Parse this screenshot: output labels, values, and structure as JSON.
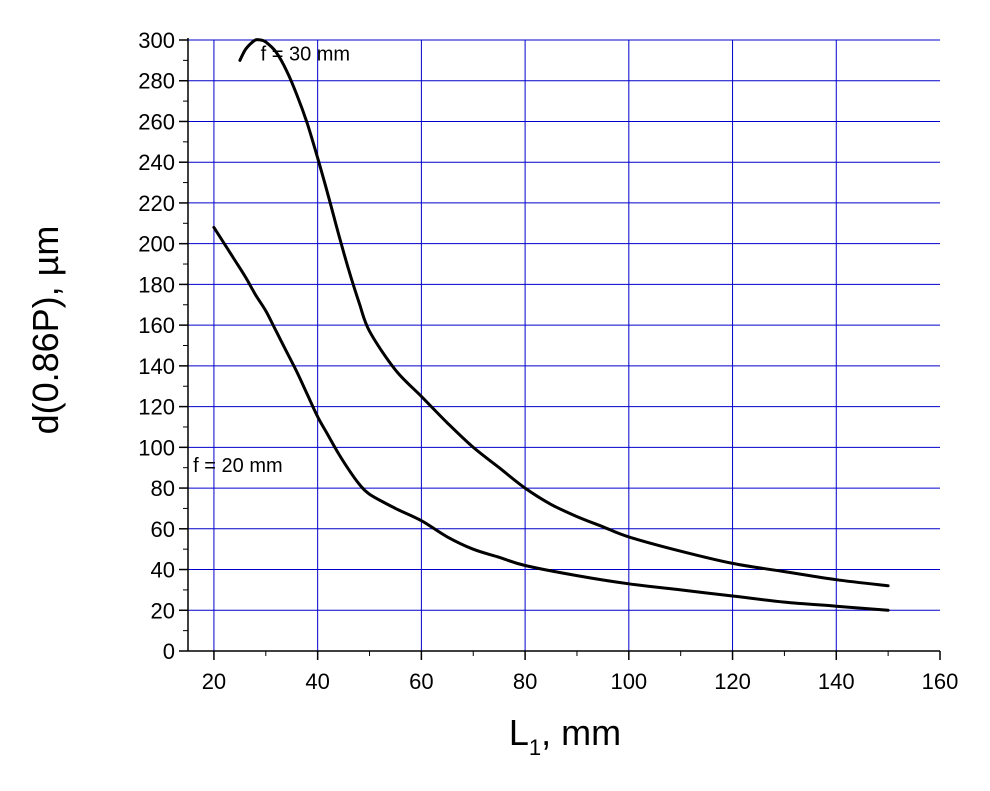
{
  "chart_data": {
    "type": "line",
    "xlabel": "L",
    "xlabel_subscript": "1",
    "xlabel_suffix": ", mm",
    "ylabel": "d(0.86P), µm",
    "xlim": [
      15,
      160
    ],
    "ylim": [
      0,
      300
    ],
    "x_ticks": [
      20,
      40,
      60,
      80,
      100,
      120,
      140,
      160
    ],
    "y_ticks": [
      0,
      20,
      40,
      60,
      80,
      100,
      120,
      140,
      160,
      180,
      200,
      220,
      240,
      260,
      280,
      300
    ],
    "grid": true,
    "grid_color": "#0000cc",
    "line_color": "#000000",
    "series": [
      {
        "name": "f = 30 mm",
        "x": [
          25,
          26,
          27,
          28,
          29,
          30,
          32,
          34,
          36,
          38,
          40,
          42,
          44,
          46,
          48,
          50,
          55,
          60,
          65,
          70,
          75,
          80,
          85,
          90,
          95,
          100,
          110,
          120,
          130,
          140,
          150
        ],
        "y": [
          290,
          295,
          298,
          300,
          300,
          299,
          294,
          285,
          273,
          259,
          242,
          224,
          205,
          187,
          171,
          157,
          138,
          125,
          112,
          100,
          90,
          80,
          72,
          66,
          61,
          56,
          49,
          43,
          39,
          35,
          32
        ]
      },
      {
        "name": "f = 20 mm",
        "x": [
          20,
          22,
          24,
          26,
          28,
          30,
          32,
          34,
          36,
          38,
          40,
          42,
          44,
          46,
          48,
          50,
          55,
          60,
          65,
          70,
          75,
          80,
          90,
          100,
          110,
          120,
          130,
          140,
          150
        ],
        "y": [
          208,
          200,
          192,
          184,
          175,
          167,
          157,
          147,
          137,
          126,
          115,
          106,
          97,
          89,
          82,
          77,
          70,
          64,
          56,
          50,
          46,
          42,
          37,
          33,
          30,
          27,
          24,
          22,
          20
        ]
      }
    ],
    "annotations": [
      {
        "text": "f = 30 mm",
        "x": 29,
        "y": 290
      },
      {
        "text": "f = 20 mm",
        "x": 16,
        "y": 88
      }
    ]
  }
}
